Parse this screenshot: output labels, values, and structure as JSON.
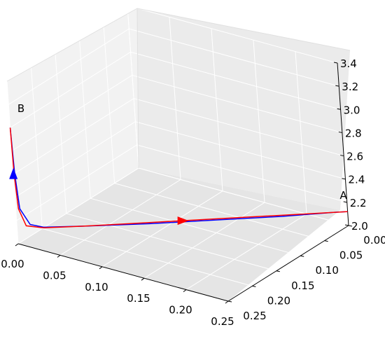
{
  "chart_data": {
    "type": "line3d",
    "title": "",
    "xlabel": "",
    "ylabel": "",
    "zlabel": "",
    "xlim": [
      0.0,
      0.25
    ],
    "ylim": [
      0.0,
      0.25
    ],
    "zlim": [
      2.0,
      3.4
    ],
    "grid": true,
    "x_ticks": [
      "0.00",
      "0.05",
      "0.10",
      "0.15",
      "0.20",
      "0.25"
    ],
    "y_ticks": [
      "0.00",
      "0.05",
      "0.10",
      "0.15",
      "0.20",
      "0.25"
    ],
    "z_ticks": [
      "2.0",
      "2.2",
      "2.4",
      "2.6",
      "2.8",
      "3.0",
      "3.2",
      "3.4"
    ],
    "annotations": [
      {
        "text": "A",
        "x": 0.25,
        "y": 0.0,
        "z": 2.12
      },
      {
        "text": "B",
        "x": 0.0,
        "y": 0.25,
        "z": 3.05
      }
    ],
    "series": [
      {
        "color": "#0000ff",
        "points": [
          [
            0.25,
            0.0,
            2.12
          ],
          [
            0.24,
            0.01,
            2.12
          ],
          [
            0.2,
            0.05,
            2.11
          ],
          [
            0.15,
            0.1,
            2.11
          ],
          [
            0.1,
            0.15,
            2.11
          ],
          [
            0.05,
            0.2,
            2.12
          ],
          [
            0.02,
            0.23,
            2.13
          ],
          [
            0.01,
            0.24,
            2.16
          ],
          [
            0.003,
            0.247,
            2.3
          ],
          [
            0.001,
            0.249,
            2.6
          ],
          [
            0.0,
            0.25,
            3.0
          ]
        ],
        "arrow": {
          "x": 0.0,
          "y": 0.25,
          "z": 2.6,
          "direction": "up"
        }
      },
      {
        "color": "#ff0000",
        "points": [
          [
            0.25,
            0.0,
            2.12
          ],
          [
            0.2,
            0.05,
            2.12
          ],
          [
            0.15,
            0.1,
            2.12
          ],
          [
            0.1,
            0.15,
            2.12
          ],
          [
            0.05,
            0.2,
            2.12
          ],
          [
            0.02,
            0.23,
            2.125
          ],
          [
            0.007,
            0.243,
            2.15
          ],
          [
            0.002,
            0.248,
            2.3
          ],
          [
            0.0005,
            0.2495,
            2.6
          ],
          [
            0.0,
            0.25,
            3.0
          ]
        ],
        "arrow": {
          "x": 0.125,
          "y": 0.125,
          "z": 2.12,
          "direction": "toward-B"
        }
      }
    ]
  }
}
